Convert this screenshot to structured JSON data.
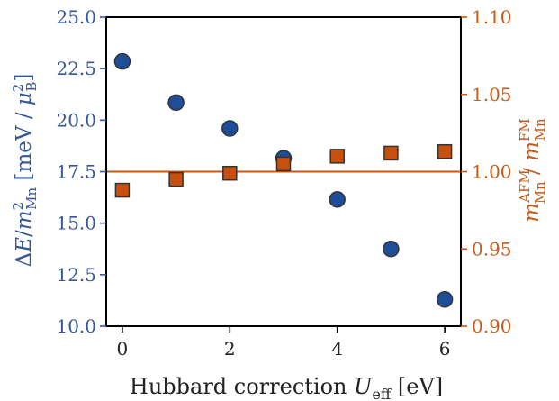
{
  "colors": {
    "left_axis": "#34569a",
    "right_axis": "#c55a1a",
    "circle_fill": "#1f4e99",
    "square_fill": "#c8500e",
    "marker_edge": "#333333",
    "reference_line": "#c55a1a",
    "frame": "#000000"
  },
  "chart_data": {
    "type": "scatter",
    "x": [
      0,
      1,
      2,
      3,
      4,
      5,
      6
    ],
    "xlim": [
      -0.3,
      6.3
    ],
    "xticks": [
      "0",
      "2",
      "4",
      "6"
    ],
    "xtick_values": [
      0,
      2,
      4,
      6
    ],
    "xlabel": {
      "prefix": "Hubbard correction ",
      "var": "U",
      "sub": "eff",
      "unit": " [eV]"
    },
    "left_axis": {
      "ylim": [
        10.0,
        25.0
      ],
      "ticks": [
        "10.0",
        "12.5",
        "15.0",
        "17.5",
        "20.0",
        "22.5",
        "25.0"
      ],
      "tick_values": [
        10.0,
        12.5,
        15.0,
        17.5,
        20.0,
        22.5,
        25.0
      ],
      "label": {
        "delta": "Δ",
        "E": "E",
        "slash": "/",
        "m": "m",
        "sup": "2",
        "sub": "Mn",
        "unit_open": " [meV / ",
        "mu": "μ",
        "mu_sup": "2",
        "mu_sub": "B",
        "unit_close": "]"
      }
    },
    "right_axis": {
      "ylim": [
        0.9,
        1.1
      ],
      "ticks": [
        "0.90",
        "0.95",
        "1.00",
        "1.05",
        "1.10"
      ],
      "tick_values": [
        0.9,
        0.95,
        1.0,
        1.05,
        1.1
      ],
      "label": {
        "m1": "m",
        "sup1": "AFM",
        "sub1": "Mn",
        "slash": " / ",
        "m2": "m",
        "sup2": "FM",
        "sub2": "Mn"
      }
    },
    "series": [
      {
        "axis": "left",
        "marker": "circle",
        "values": [
          22.85,
          20.85,
          19.6,
          18.15,
          16.15,
          13.75,
          11.3
        ]
      },
      {
        "axis": "right",
        "marker": "square",
        "values": [
          0.988,
          0.995,
          0.999,
          1.005,
          1.01,
          1.012,
          1.013
        ]
      }
    ],
    "reference_line": {
      "axis": "right",
      "value": 1.0
    },
    "grid": false
  }
}
